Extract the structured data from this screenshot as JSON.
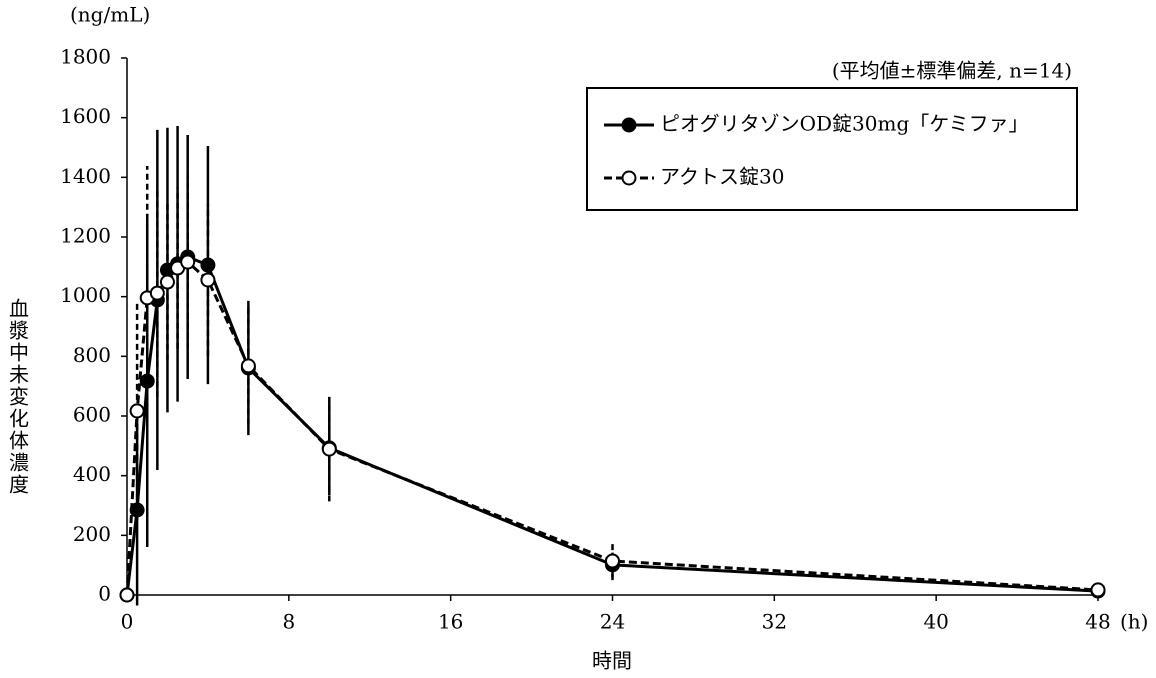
{
  "chart_data": {
    "type": "line",
    "y_unit": "(ng/mL)",
    "y_label": "血漿中未変化体濃度",
    "x_label": "時間",
    "x_unit": "(h)",
    "note": "(平均値±標準偏差, n=14)",
    "x": [
      0,
      0.5,
      1,
      1.5,
      2,
      2.5,
      3,
      4,
      6,
      10,
      24,
      48
    ],
    "series": [
      {
        "name": "ピオグリタゾンOD錠30mg「ケミファ」",
        "color": "#000000",
        "dashed": false,
        "filled": true,
        "values": [
          0,
          285,
          717,
          989,
          1089,
          1110,
          1133,
          1106,
          761,
          493,
          101,
          13
        ],
        "errors": [
          0,
          320,
          556,
          570,
          477,
          462,
          409,
          399,
          225,
          158,
          41,
          5
        ]
      },
      {
        "name": "アクトス錠30",
        "color": "#000000",
        "dashed": true,
        "filled": false,
        "values": [
          0,
          617,
          996,
          1012,
          1049,
          1096,
          1116,
          1056,
          768,
          489,
          114,
          17
        ],
        "errors": [
          0,
          365,
          442,
          349,
          261,
          271,
          291,
          255,
          197,
          175,
          64,
          6
        ]
      }
    ],
    "xlim": [
      0,
      48
    ],
    "xticks": [
      0,
      8,
      16,
      24,
      32,
      40,
      48
    ],
    "ylim": [
      0,
      1800
    ],
    "yticks": [
      0,
      200,
      400,
      600,
      800,
      1000,
      1200,
      1400,
      1600,
      1800
    ],
    "legend": "upper right"
  }
}
